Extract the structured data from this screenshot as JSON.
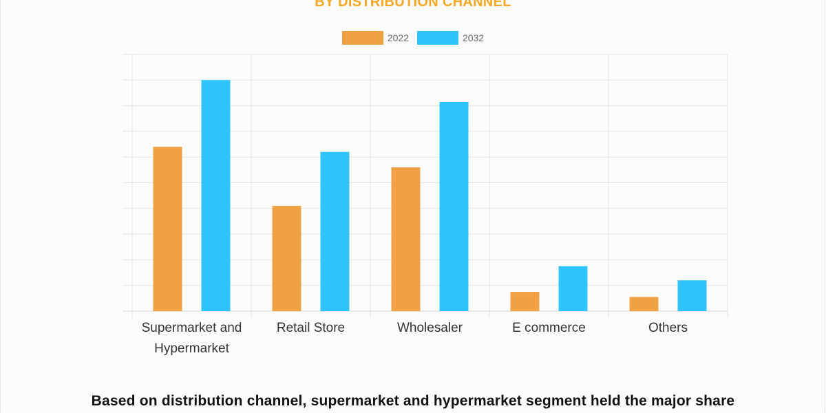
{
  "title": "BY DISTRIBUTION CHANNEL",
  "caption": "Based on distribution channel, supermarket and hypermarket segment held the major share",
  "colors": {
    "title": "#f5a623",
    "series_2022": "#f0a143",
    "series_2032": "#2ec4fb",
    "grid": "#e3e3e3",
    "tick_text": "#333333"
  },
  "chart_data": {
    "type": "bar",
    "title": "BY DISTRIBUTION CHANNEL",
    "categories": [
      [
        "Supermarket and",
        "Hypermarket"
      ],
      [
        "Retail Store"
      ],
      [
        "Wholesaler"
      ],
      [
        "E commerce"
      ],
      [
        "Others"
      ]
    ],
    "series": [
      {
        "name": "2022",
        "values": [
          6.4,
          4.1,
          5.6,
          0.75,
          0.55
        ]
      },
      {
        "name": "2032",
        "values": [
          9.0,
          6.2,
          8.15,
          1.75,
          1.2
        ]
      }
    ],
    "ylim": [
      0,
      10
    ],
    "y_ticks_labeled": false,
    "grid": true,
    "legend": "top-center"
  }
}
